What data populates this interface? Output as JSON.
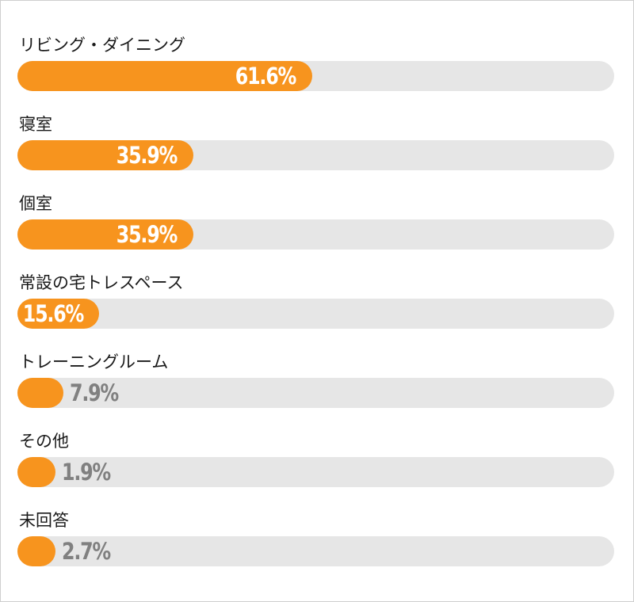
{
  "chart_data": {
    "type": "bar",
    "orientation": "horizontal",
    "categories": [
      "リビング・ダイニング",
      "寝室",
      "個室",
      "常設の宅トレスペース",
      "トレーニングルーム",
      "その他",
      "未回答"
    ],
    "values": [
      61.6,
      35.9,
      35.9,
      15.6,
      7.9,
      1.9,
      2.7
    ],
    "value_labels": [
      "61.6%",
      "35.9%",
      "35.9%",
      "15.6%",
      "7.9%",
      "1.9%",
      "2.7%"
    ],
    "xlim": [
      0,
      100
    ],
    "grid": false,
    "legend": "none"
  },
  "colors": {
    "bar_fill": "#f7941e",
    "bar_track": "#e6e6e6",
    "label_inside": "#ffffff",
    "label_outside": "#808080",
    "category_text": "#1a1a1a"
  }
}
